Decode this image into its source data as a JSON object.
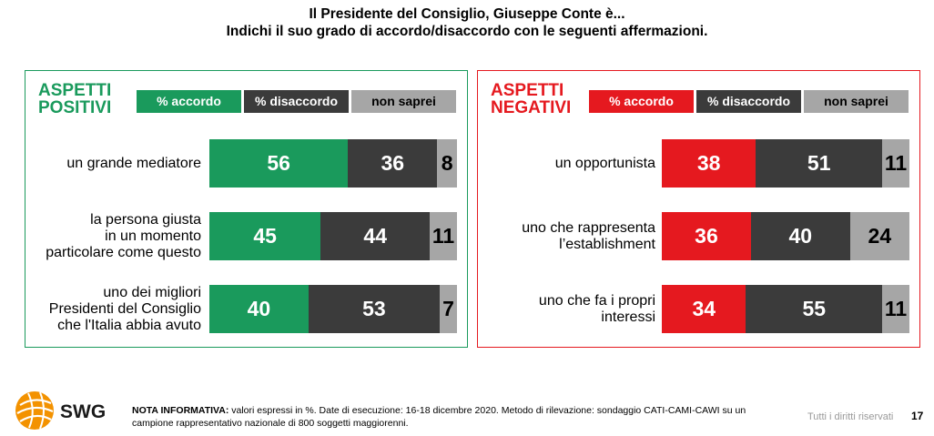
{
  "title_line1": "Il Presidente del Consiglio, Giuseppe Conte è...",
  "title_line2": "Indichi il suo grado di accordo/disaccordo con le seguenti affermazioni.",
  "colors": {
    "positive_accent": "#1a9a5c",
    "negative_accent": "#e5191f",
    "disagree": "#3b3b3b",
    "unknown": "#a6a6a6"
  },
  "panels": {
    "positive": {
      "heading_line1": "ASPETTI",
      "heading_line2": "POSITIVI",
      "legend": [
        "% accordo",
        "% disaccordo",
        "non saprei"
      ],
      "rows": [
        {
          "label": [
            "un grande mediatore"
          ],
          "accordo": 56,
          "disaccordo": 36,
          "non_saprei": 8
        },
        {
          "label": [
            "la persona giusta",
            "in un momento",
            "particolare come questo"
          ],
          "accordo": 45,
          "disaccordo": 44,
          "non_saprei": 11
        },
        {
          "label": [
            "uno dei migliori",
            "Presidenti del Consiglio",
            "che l'Italia abbia avuto"
          ],
          "accordo": 40,
          "disaccordo": 53,
          "non_saprei": 7
        }
      ]
    },
    "negative": {
      "heading_line1": "ASPETTI",
      "heading_line2": "NEGATIVI",
      "legend": [
        "% accordo",
        "% disaccordo",
        "non saprei"
      ],
      "rows": [
        {
          "label": [
            "un opportunista"
          ],
          "accordo": 38,
          "disaccordo": 51,
          "non_saprei": 11
        },
        {
          "label": [
            "uno che rappresenta",
            "l’establishment"
          ],
          "accordo": 36,
          "disaccordo": 40,
          "non_saprei": 24
        },
        {
          "label": [
            "uno che fa i propri",
            "interessi"
          ],
          "accordo": 34,
          "disaccordo": 55,
          "non_saprei": 11
        }
      ]
    }
  },
  "chart_data": [
    {
      "type": "bar",
      "title": "ASPETTI POSITIVI",
      "orientation": "horizontal-stacked",
      "categories": [
        "un grande mediatore",
        "la persona giusta in un momento particolare come questo",
        "uno dei migliori Presidenti del Consiglio che l'Italia abbia avuto"
      ],
      "series": [
        {
          "name": "% accordo",
          "values": [
            56,
            45,
            40
          ]
        },
        {
          "name": "% disaccordo",
          "values": [
            36,
            44,
            53
          ]
        },
        {
          "name": "non saprei",
          "values": [
            8,
            11,
            7
          ]
        }
      ]
    },
    {
      "type": "bar",
      "title": "ASPETTI NEGATIVI",
      "orientation": "horizontal-stacked",
      "categories": [
        "un opportunista",
        "uno che rappresenta l’establishment",
        "uno che fa i propri interessi"
      ],
      "series": [
        {
          "name": "% accordo",
          "values": [
            38,
            36,
            34
          ]
        },
        {
          "name": "% disaccordo",
          "values": [
            51,
            40,
            55
          ]
        },
        {
          "name": "non saprei",
          "values": [
            11,
            24,
            11
          ]
        }
      ]
    }
  ],
  "footer": {
    "brand": "SWG",
    "note_bold": "NOTA INFORMATIVA:",
    "note_text": " valori espressi in %. Date di esecuzione: 16-18 dicembre 2020. Metodo di rilevazione: sondaggio CATI-CAMI-CAWI su un campione rappresentativo nazionale di 800 soggetti maggiorenni.",
    "rights": "Tutti i diritti riservati",
    "page": "17"
  }
}
